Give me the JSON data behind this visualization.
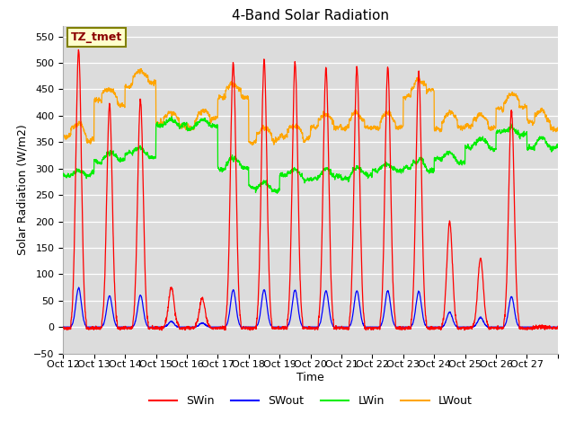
{
  "title": "4-Band Solar Radiation",
  "xlabel": "Time",
  "ylabel": "Solar Radiation (W/m2)",
  "ylim": [
    -50,
    570
  ],
  "yticks": [
    -50,
    0,
    50,
    100,
    150,
    200,
    250,
    300,
    350,
    400,
    450,
    500,
    550
  ],
  "annotation": "TZ_tmet",
  "plot_bg_color": "#dcdcdc",
  "colors": {
    "SWin": "red",
    "SWout": "blue",
    "LWin": "#00ee00",
    "LWout": "orange"
  },
  "n_days": 16,
  "n_points_per_day": 144,
  "sw_peaks": [
    525,
    420,
    430,
    75,
    55,
    500,
    505,
    500,
    490,
    490,
    490,
    480,
    200,
    130,
    410,
    0
  ],
  "lwin_base": [
    285,
    315,
    325,
    380,
    378,
    302,
    260,
    283,
    283,
    285,
    295,
    300,
    315,
    340,
    365,
    340
  ],
  "lwout_base": [
    358,
    425,
    460,
    382,
    385,
    435,
    352,
    358,
    378,
    378,
    378,
    442,
    378,
    378,
    415,
    382
  ],
  "x_tick_labels": [
    "Oct 12",
    "Oct 13",
    "Oct 14",
    "Oct 15",
    "Oct 16",
    "Oct 17",
    "Oct 18",
    "Oct 19",
    "Oct 20",
    "Oct 21",
    "Oct 22",
    "Oct 23",
    "Oct 24",
    "Oct 25",
    "Oct 26",
    "Oct 27",
    ""
  ]
}
